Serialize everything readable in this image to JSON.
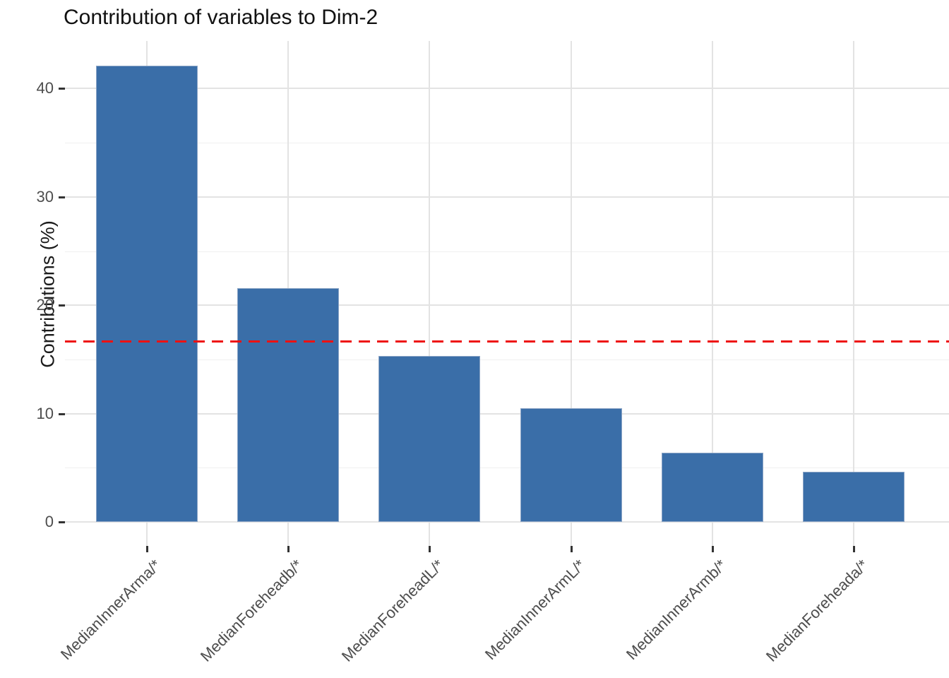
{
  "chart_data": {
    "type": "bar",
    "title": "Contribution of variables to Dim-2",
    "xlabel": "",
    "ylabel": "Contributions (%)",
    "categories": [
      "MedianInnerArma/*",
      "MedianForeheadb/*",
      "MedianForeheadL/*",
      "MedianInnerArmL/*",
      "MedianInnerArmb/*",
      "MedianForeheada/*"
    ],
    "values": [
      42.1,
      21.6,
      15.3,
      10.5,
      6.4,
      4.6
    ],
    "reference_line": 16.67,
    "y_ticks": [
      "0",
      "10",
      "20",
      "30",
      "40"
    ],
    "y_tick_values": [
      0,
      10,
      20,
      30,
      40
    ],
    "y_minor_values": [
      5,
      15,
      25,
      35
    ],
    "ylim": [
      0,
      44.4
    ],
    "grid": "major-and-minor, light gray on white",
    "legend_position": "none",
    "bar_color": "#3a6ea8",
    "bar_border_color": "#8ca5c6",
    "ref_line_color": "#ee1111",
    "axis_text_color": "#4d4d4d",
    "title_color": "#111111"
  }
}
